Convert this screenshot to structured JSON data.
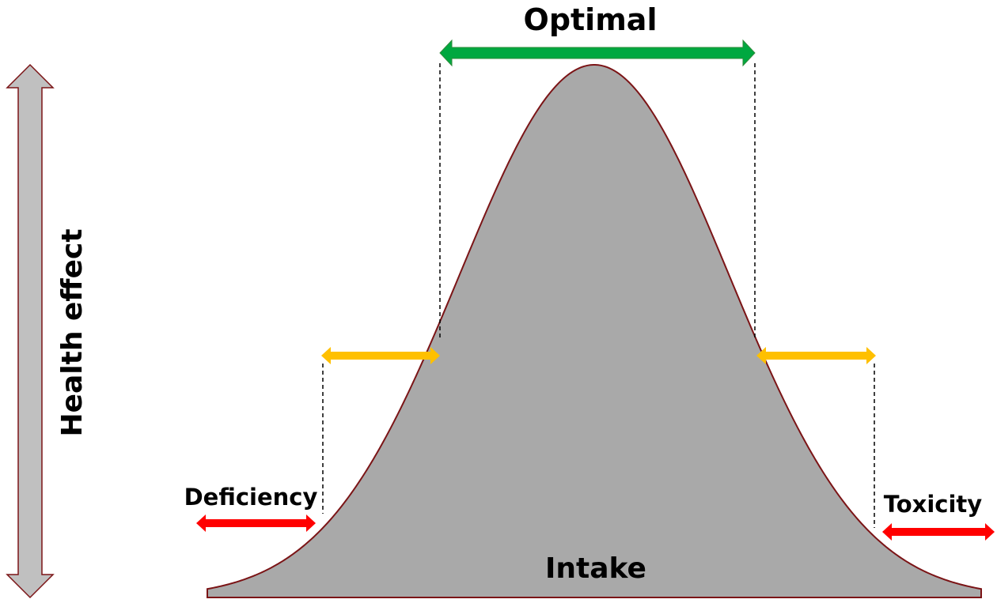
{
  "labels": {
    "optimal": "Optimal",
    "deficiency": "Deficiency",
    "toxicity": "Toxicity",
    "intake": "Intake",
    "health_effect": "Health effect"
  },
  "colors": {
    "curve_fill": "#a9a9a9",
    "curve_stroke": "#7b1416",
    "optimal_arrow": "#00a840",
    "suboptimal_arrow": "#ffc000",
    "risk_arrow": "#ff0000",
    "axis_arrow_fill": "#c0c0c0",
    "axis_arrow_stroke": "#7b1416",
    "guide_line": "#000000"
  },
  "regions": [
    {
      "name": "Deficiency",
      "level": "risk"
    },
    {
      "name": "",
      "level": "suboptimal-low"
    },
    {
      "name": "Optimal",
      "level": "optimal"
    },
    {
      "name": "",
      "level": "suboptimal-high"
    },
    {
      "name": "Toxicity",
      "level": "risk"
    }
  ]
}
